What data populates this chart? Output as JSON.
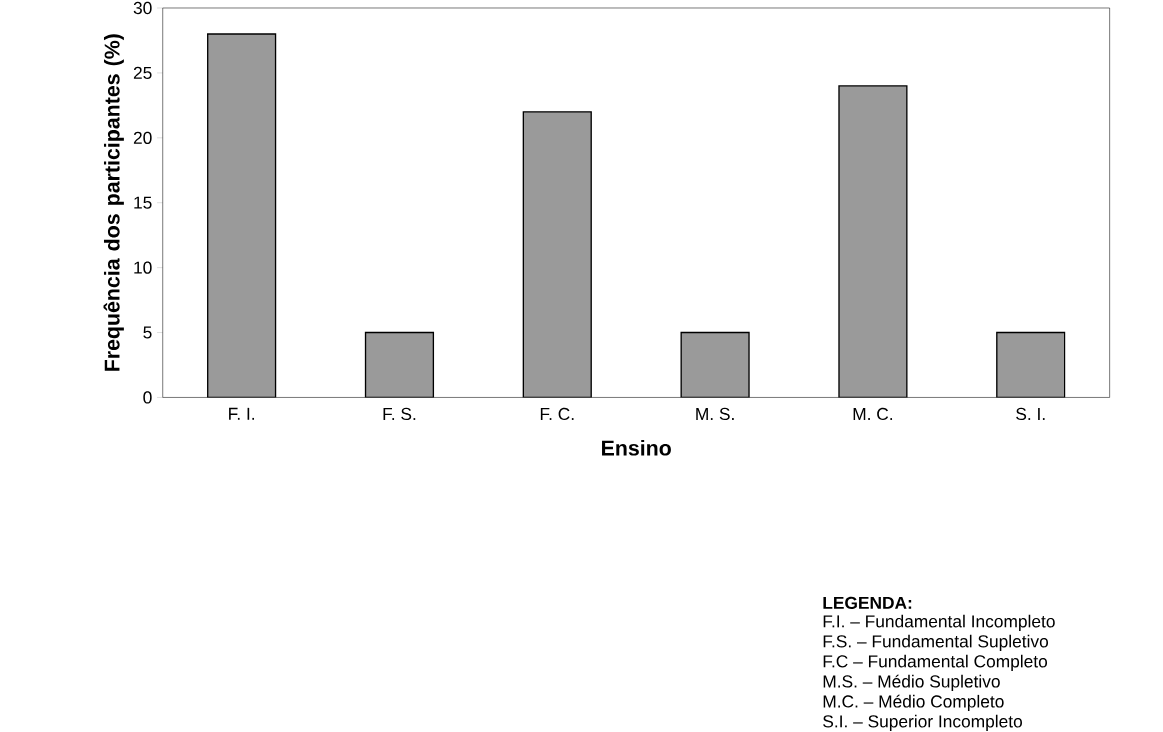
{
  "chart_data": {
    "type": "bar",
    "xlabel": "Ensino",
    "ylabel": "Frequência dos participantes (%)",
    "categories": [
      "F. I.",
      "F. S.",
      "F. C.",
      "M. S.",
      "M. C.",
      "S. I."
    ],
    "values": [
      28,
      5,
      22,
      5,
      24,
      5
    ],
    "color": "#9a9a9a",
    "ylim": [
      0,
      30
    ],
    "yticks": [
      0,
      5,
      10,
      15,
      20,
      25,
      30
    ],
    "grid": false,
    "annotations": [
      "LEGENDA:",
      "F.I. – Fundamental Incompleto",
      "F.S. – Fundamental Supletivo",
      "F.C – Fundamental Completo",
      "M.S. – Médio Supletivo",
      "M.C. – Médio Completo",
      "S.I. – Superior Incompleto"
    ]
  }
}
